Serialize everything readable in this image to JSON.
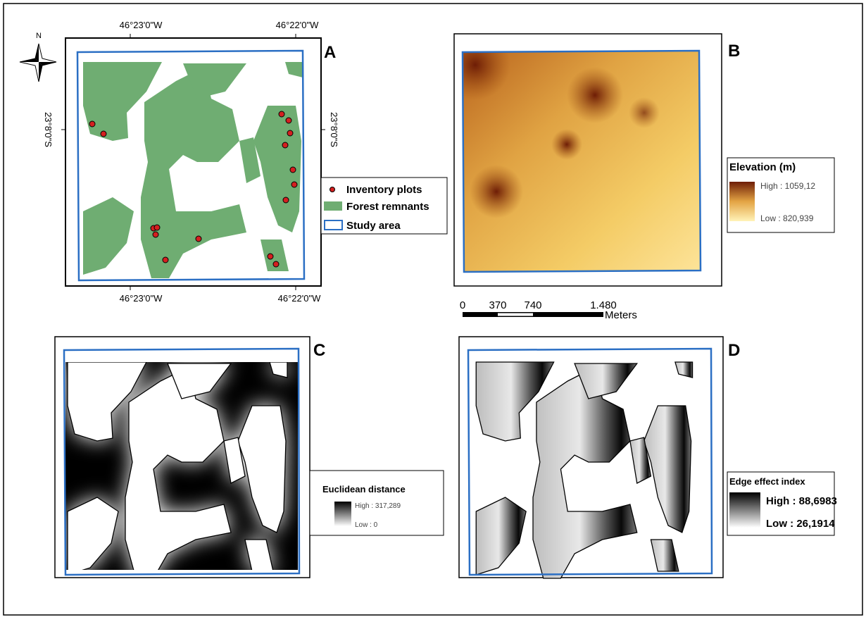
{
  "north_arrow": "N",
  "panels": [
    {
      "label": "A",
      "coords": {
        "top": [
          "46°23'0\"W",
          "46°22'0\"W"
        ],
        "bottom": [
          "46°23'0\"W",
          "46°22'0\"W"
        ],
        "left": "23°8'0\"S",
        "right": "23°8'0\"S"
      },
      "legend": {
        "items": [
          "Inventory plots",
          "Forest remnants",
          "Study area"
        ]
      }
    },
    {
      "label": "B",
      "legend": {
        "title": "Elevation (m)",
        "high": "High : 1059,12",
        "low": "Low : 820,939"
      }
    },
    {
      "label": "C",
      "legend": {
        "title": "Euclidean distance",
        "high": "High : 317,289",
        "low": "Low : 0"
      }
    },
    {
      "label": "D",
      "legend": {
        "title": "Edge effect index",
        "high": "High : 88,6983",
        "low": "Low : 26,1914"
      }
    }
  ],
  "scale_bar": {
    "ticks": [
      "0",
      "370",
      "740",
      "1.480"
    ],
    "unit": "Meters"
  }
}
